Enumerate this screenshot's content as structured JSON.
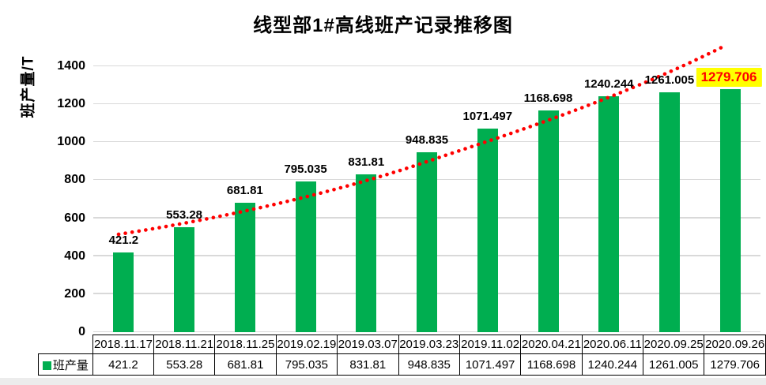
{
  "chart_data": {
    "type": "bar",
    "title": "线型部1#高线班产记录推移图",
    "ylabel": "班产量/T",
    "xlabel": "",
    "categories": [
      "2018.11.17",
      "2018.11.21",
      "2018.11.25",
      "2019.02.19",
      "2019.03.07",
      "2019.03.23",
      "2019.11.02",
      "2020.04.21",
      "2020.06.11",
      "2020.09.25",
      "2020.09.26"
    ],
    "series": [
      {
        "name": "班产量",
        "values": [
          421.2,
          553.28,
          681.81,
          795.035,
          831.81,
          948.835,
          1071.497,
          1168.698,
          1240.244,
          1261.005,
          1279.706
        ]
      }
    ],
    "data_labels": [
      "421.2",
      "553.28",
      "681.81",
      "795.035",
      "831.81",
      "948.835",
      "1071.497",
      "1168.698",
      "1240.244",
      "1261.005",
      "1279.706"
    ],
    "ylim": [
      0,
      1400
    ],
    "ytick_step": 200,
    "grid": true,
    "legend_position": "bottom-table-left",
    "trendline": {
      "type": "exponential",
      "style": "dotted",
      "color": "#FF0000"
    },
    "highlight": {
      "category": "2020.09.26",
      "label": "1279.706"
    }
  },
  "legend": {
    "label": "班产量"
  },
  "colors": {
    "bar": "#00AE50",
    "gridline": "#D9D9D9",
    "trendline": "#FF0000",
    "highlight_bg": "#FFFF00",
    "highlight_text": "#FF0000",
    "table_border": "#000000",
    "bottom_strip": "#ECECEC",
    "text": "#000000"
  }
}
